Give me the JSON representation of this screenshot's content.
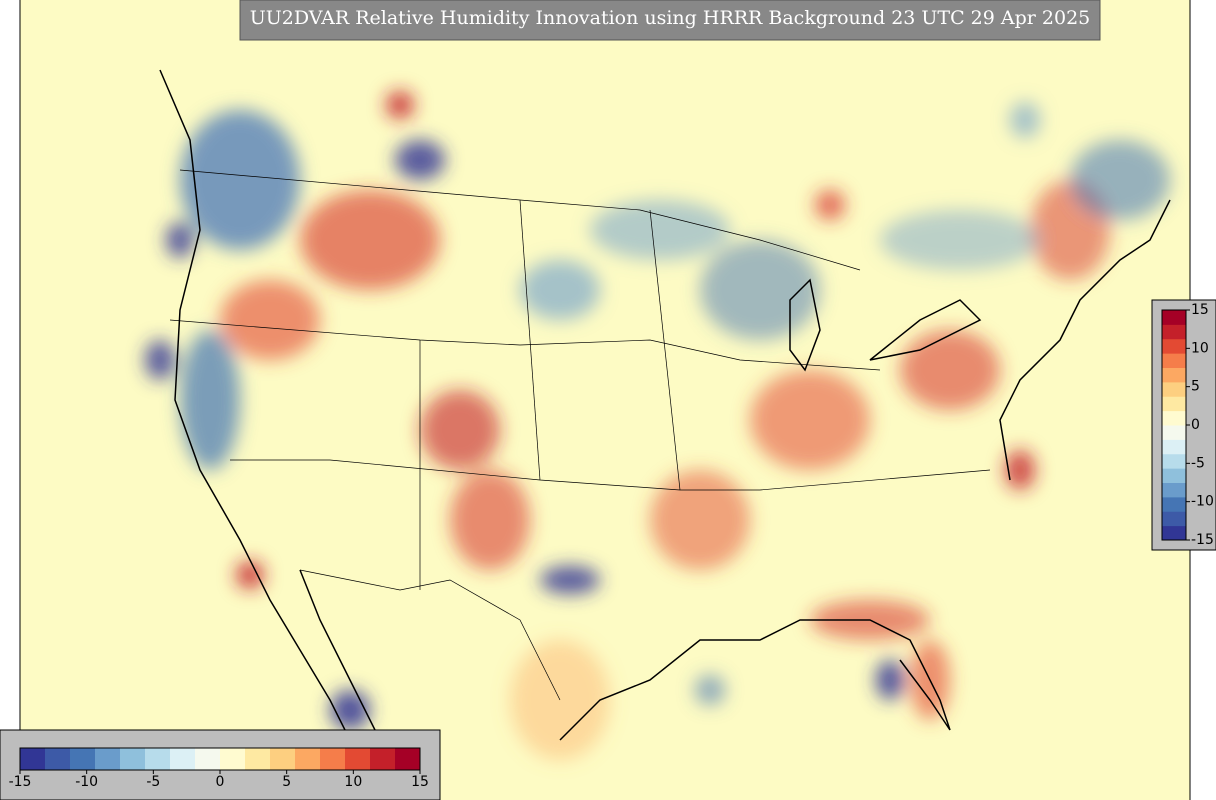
{
  "title": "UU2DVAR Relative Humidity Innovation using HRRR Background 23 UTC 29 Apr 2025",
  "colorbar": {
    "range": [
      -15,
      15
    ],
    "ticks": [
      -15,
      -10,
      -5,
      0,
      5,
      10,
      15
    ],
    "colors": [
      "#313695",
      "#3d5aa7",
      "#4575b4",
      "#6a9ccb",
      "#8fc0dc",
      "#b7dceb",
      "#dcf0f5",
      "#f5f9ee",
      "#fffbd0",
      "#fee9a2",
      "#fdcf80",
      "#fca862",
      "#f57d4a",
      "#e34a33",
      "#c4202a",
      "#a50026"
    ]
  }
}
